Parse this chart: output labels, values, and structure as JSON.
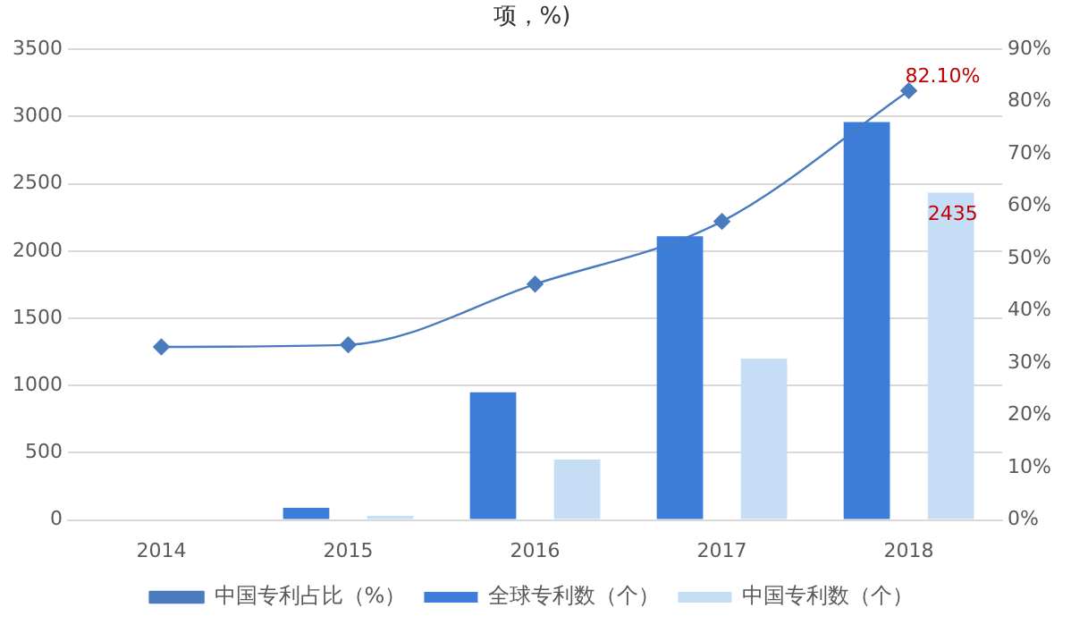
{
  "chart_data": {
    "type": "bar",
    "title": "项，%)",
    "categories": [
      "2014",
      "2015",
      "2016",
      "2017",
      "2018"
    ],
    "series": [
      {
        "name": "全球专利数（个）",
        "color": "#3c7dd9",
        "values": [
          0,
          90,
          950,
          2110,
          2960
        ]
      },
      {
        "name": "中国专利数（个）",
        "color": "#c5ddf5",
        "values": [
          0,
          30,
          450,
          1200,
          2435
        ],
        "value_labels": [
          null,
          null,
          null,
          null,
          "2435"
        ]
      },
      {
        "name": "中国专利占比（%）",
        "type": "line",
        "axis": "y2",
        "color": "#4a7bbf",
        "marker": "diamond",
        "values": [
          33.1,
          33.5,
          45.1,
          57.1,
          82.1
        ],
        "value_labels": [
          null,
          null,
          null,
          null,
          "82.10%"
        ]
      }
    ],
    "ylim": [
      0,
      3500
    ],
    "yticks": [
      0,
      500,
      1000,
      1500,
      2000,
      2500,
      3000,
      3500
    ],
    "y2lim": [
      0,
      90
    ],
    "y2ticks": [
      {
        "value": 0,
        "label": "0%"
      },
      {
        "value": 10,
        "label": "10%"
      },
      {
        "value": 20,
        "label": "20%"
      },
      {
        "value": 30,
        "label": "30%"
      },
      {
        "value": 40,
        "label": "40%"
      },
      {
        "value": 50,
        "label": "50%"
      },
      {
        "value": 60,
        "label": "60%"
      },
      {
        "value": 70,
        "label": "70%"
      },
      {
        "value": 80,
        "label": "80%"
      },
      {
        "value": 90,
        "label": "90%"
      }
    ],
    "grid": "y",
    "legend": "bottom"
  }
}
